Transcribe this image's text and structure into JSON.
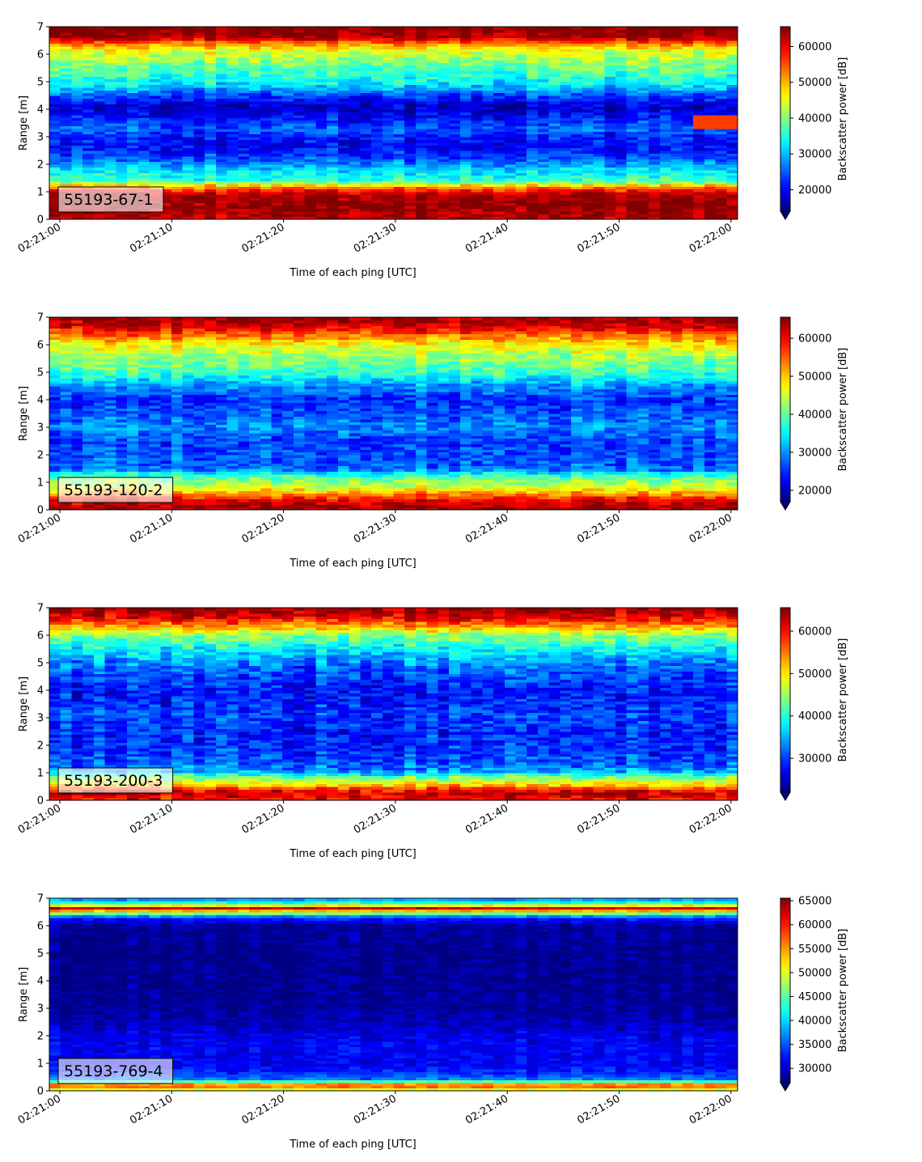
{
  "chart_data": [
    {
      "type": "heatmap",
      "annotation": "55193-67-1",
      "xlabel": "Time of each ping [UTC]",
      "ylabel": "Range [m]",
      "colorbar_label": "Backscatter power [dB]",
      "colormap": "jet",
      "xticks": [
        "02:21:00",
        "02:21:10",
        "02:21:20",
        "02:21:30",
        "02:21:40",
        "02:21:50",
        "02:22:00"
      ],
      "yticks": [
        0,
        1,
        2,
        3,
        4,
        5,
        6,
        7
      ],
      "ylim": [
        0,
        7
      ],
      "colorbar_range": [
        14000,
        65535
      ],
      "colorbar_ticks": [
        20000,
        30000,
        40000,
        50000,
        60000
      ],
      "profile": [
        {
          "range": 0.1,
          "value": 63000
        },
        {
          "range": 0.5,
          "value": 65000
        },
        {
          "range": 0.9,
          "value": 64000
        },
        {
          "range": 1.2,
          "value": 52000
        },
        {
          "range": 1.4,
          "value": 36000
        },
        {
          "range": 1.7,
          "value": 33000
        },
        {
          "range": 1.9,
          "value": 30000
        },
        {
          "range": 2.2,
          "value": 24000
        },
        {
          "range": 2.7,
          "value": 20000
        },
        {
          "range": 3.0,
          "value": 22000
        },
        {
          "range": 3.3,
          "value": 25000
        },
        {
          "range": 3.7,
          "value": 21000
        },
        {
          "range": 4.1,
          "value": 17000
        },
        {
          "range": 4.5,
          "value": 24000
        },
        {
          "range": 4.9,
          "value": 32000
        },
        {
          "range": 5.3,
          "value": 36000
        },
        {
          "range": 5.8,
          "value": 41000
        },
        {
          "range": 6.2,
          "value": 46000
        },
        {
          "range": 6.45,
          "value": 55000
        },
        {
          "range": 6.6,
          "value": 63000
        },
        {
          "range": 6.9,
          "value": 66000
        }
      ],
      "streak": {
        "range_min": 3.3,
        "range_max": 3.8,
        "value": 56000
      }
    },
    {
      "type": "heatmap",
      "annotation": "55193-120-2",
      "xlabel": "Time of each ping [UTC]",
      "ylabel": "Range [m]",
      "colorbar_label": "Backscatter power [dB]",
      "colormap": "jet",
      "xticks": [
        "02:21:00",
        "02:21:10",
        "02:21:20",
        "02:21:30",
        "02:21:40",
        "02:21:50",
        "02:22:00"
      ],
      "yticks": [
        0,
        1,
        2,
        3,
        4,
        5,
        6,
        7
      ],
      "ylim": [
        0,
        7
      ],
      "colorbar_range": [
        17000,
        65535
      ],
      "colorbar_ticks": [
        20000,
        30000,
        40000,
        50000,
        60000
      ],
      "profile": [
        {
          "range": 0.1,
          "value": 64000
        },
        {
          "range": 0.35,
          "value": 61000
        },
        {
          "range": 0.6,
          "value": 52000
        },
        {
          "range": 0.9,
          "value": 44000
        },
        {
          "range": 1.2,
          "value": 40000
        },
        {
          "range": 1.5,
          "value": 28000
        },
        {
          "range": 2.0,
          "value": 27000
        },
        {
          "range": 2.5,
          "value": 26000
        },
        {
          "range": 3.0,
          "value": 30000
        },
        {
          "range": 3.5,
          "value": 27000
        },
        {
          "range": 4.0,
          "value": 25000
        },
        {
          "range": 4.5,
          "value": 30000
        },
        {
          "range": 5.0,
          "value": 38000
        },
        {
          "range": 5.5,
          "value": 42000
        },
        {
          "range": 6.0,
          "value": 47000
        },
        {
          "range": 6.3,
          "value": 53000
        },
        {
          "range": 6.6,
          "value": 60000
        },
        {
          "range": 6.9,
          "value": 64000
        }
      ]
    },
    {
      "type": "heatmap",
      "annotation": "55193-200-3",
      "xlabel": "Time of each ping [UTC]",
      "ylabel": "Range [m]",
      "colorbar_label": "Backscatter power [dB]",
      "colormap": "jet",
      "xticks": [
        "02:21:00",
        "02:21:10",
        "02:21:20",
        "02:21:30",
        "02:21:40",
        "02:21:50",
        "02:22:00"
      ],
      "yticks": [
        0,
        1,
        2,
        3,
        4,
        5,
        6,
        7
      ],
      "ylim": [
        0,
        7
      ],
      "colorbar_range": [
        22000,
        65535
      ],
      "colorbar_ticks": [
        30000,
        40000,
        50000,
        60000
      ],
      "profile": [
        {
          "range": 0.05,
          "value": 60000
        },
        {
          "range": 0.3,
          "value": 63000
        },
        {
          "range": 0.55,
          "value": 52000
        },
        {
          "range": 0.8,
          "value": 45000
        },
        {
          "range": 1.1,
          "value": 33000
        },
        {
          "range": 1.6,
          "value": 30000
        },
        {
          "range": 2.0,
          "value": 29000
        },
        {
          "range": 2.5,
          "value": 28500
        },
        {
          "range": 3.0,
          "value": 30000
        },
        {
          "range": 3.5,
          "value": 29000
        },
        {
          "range": 4.0,
          "value": 28000
        },
        {
          "range": 4.5,
          "value": 30000
        },
        {
          "range": 5.0,
          "value": 33000
        },
        {
          "range": 5.5,
          "value": 38000
        },
        {
          "range": 6.0,
          "value": 44000
        },
        {
          "range": 6.3,
          "value": 52000
        },
        {
          "range": 6.6,
          "value": 60000
        },
        {
          "range": 6.9,
          "value": 64000
        }
      ]
    },
    {
      "type": "heatmap",
      "annotation": "55193-769-4",
      "xlabel": "Time of each ping [UTC]",
      "ylabel": "Range [m]",
      "colorbar_label": "Backscatter power [dB]",
      "colormap": "jet",
      "xticks": [
        "02:21:00",
        "02:21:10",
        "02:21:20",
        "02:21:30",
        "02:21:40",
        "02:21:50",
        "02:22:00"
      ],
      "yticks": [
        0,
        1,
        2,
        3,
        4,
        5,
        6,
        7
      ],
      "ylim": [
        0,
        7
      ],
      "colorbar_range": [
        27000,
        65535
      ],
      "colorbar_ticks": [
        30000,
        35000,
        40000,
        45000,
        50000,
        55000,
        60000,
        65000
      ],
      "profile": [
        {
          "range": 0.1,
          "value": 50000
        },
        {
          "range": 0.2,
          "value": 62000
        },
        {
          "range": 0.3,
          "value": 48000
        },
        {
          "range": 0.45,
          "value": 36000
        },
        {
          "range": 0.7,
          "value": 33000
        },
        {
          "range": 1.0,
          "value": 31000
        },
        {
          "range": 1.5,
          "value": 31500
        },
        {
          "range": 2.0,
          "value": 31000
        },
        {
          "range": 2.5,
          "value": 29000
        },
        {
          "range": 3.0,
          "value": 28000
        },
        {
          "range": 4.0,
          "value": 27500
        },
        {
          "range": 5.0,
          "value": 27500
        },
        {
          "range": 6.0,
          "value": 28000
        },
        {
          "range": 6.3,
          "value": 33000
        },
        {
          "range": 6.5,
          "value": 50000
        },
        {
          "range": 6.65,
          "value": 63000
        },
        {
          "range": 6.8,
          "value": 45000
        },
        {
          "range": 6.95,
          "value": 38000
        }
      ]
    }
  ]
}
